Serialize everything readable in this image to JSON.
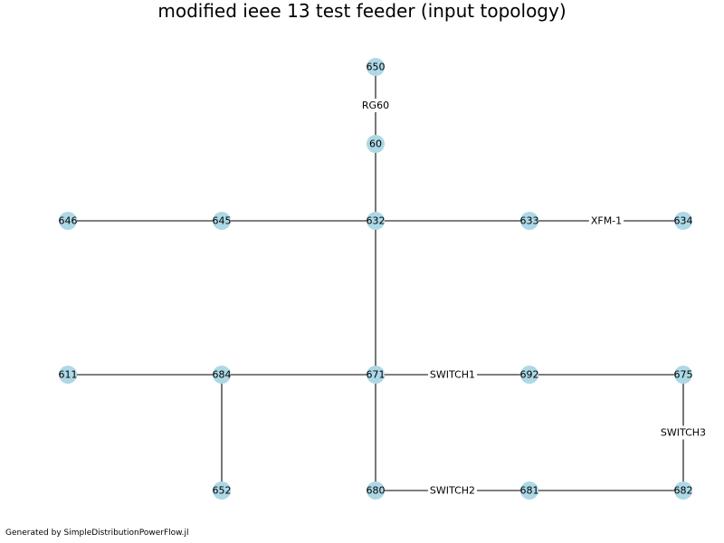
{
  "title": "modified ieee 13 test feeder (input topology)",
  "footer": "Generated by SimpleDistributionPowerFlow.jl",
  "colors": {
    "node_fill": "#add8e6",
    "edge": "#555555"
  },
  "nodes": [
    "650",
    "60",
    "646",
    "645",
    "632",
    "633",
    "634",
    "611",
    "684",
    "671",
    "692",
    "675",
    "652",
    "680",
    "681",
    "682"
  ],
  "edges": [
    {
      "from": "650",
      "to": "60",
      "label": "RG60"
    },
    {
      "from": "60",
      "to": "632",
      "label": ""
    },
    {
      "from": "646",
      "to": "645",
      "label": ""
    },
    {
      "from": "645",
      "to": "632",
      "label": ""
    },
    {
      "from": "632",
      "to": "633",
      "label": ""
    },
    {
      "from": "633",
      "to": "634",
      "label": "XFM-1"
    },
    {
      "from": "632",
      "to": "671",
      "label": ""
    },
    {
      "from": "611",
      "to": "684",
      "label": ""
    },
    {
      "from": "684",
      "to": "671",
      "label": ""
    },
    {
      "from": "684",
      "to": "652",
      "label": ""
    },
    {
      "from": "671",
      "to": "692",
      "label": "SWITCH1"
    },
    {
      "from": "692",
      "to": "675",
      "label": ""
    },
    {
      "from": "675",
      "to": "682",
      "label": "SWITCH3"
    },
    {
      "from": "671",
      "to": "680",
      "label": ""
    },
    {
      "from": "680",
      "to": "681",
      "label": "SWITCH2"
    },
    {
      "from": "681",
      "to": "682",
      "label": ""
    }
  ]
}
